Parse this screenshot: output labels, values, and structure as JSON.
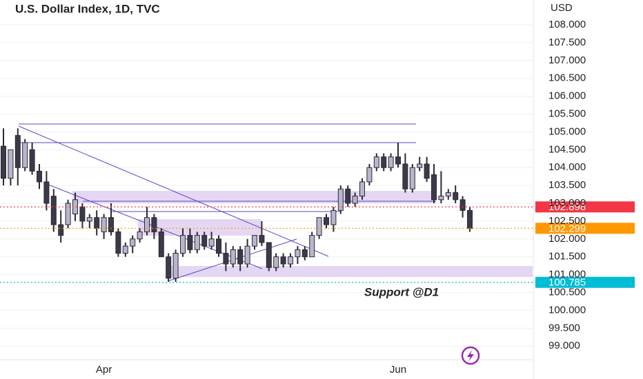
{
  "chart_data": {
    "type": "candlestick",
    "title": "U.S. Dollar Index, 1D, TVC",
    "axis_unit": "USD",
    "annotation": "Support @D1",
    "categories": [
      null,
      null,
      null,
      null,
      null,
      null,
      null,
      null,
      null,
      null,
      null,
      null,
      null,
      null,
      "Apr",
      null,
      null,
      null,
      null,
      null,
      null,
      null,
      null,
      null,
      null,
      null,
      null,
      null,
      null,
      null,
      null,
      null,
      null,
      null,
      null,
      null,
      null,
      null,
      null,
      null,
      null,
      null,
      null,
      null,
      null,
      null,
      null,
      null,
      null,
      null,
      null,
      null,
      null,
      null,
      null,
      "Jun",
      null,
      null,
      null,
      null,
      null,
      null,
      null,
      null,
      null,
      null
    ],
    "open": [
      104.6,
      103.7,
      104.9,
      104.0,
      104.5,
      103.9,
      103.6,
      103.2,
      102.4,
      102.4,
      102.7,
      102.9,
      102.5,
      102.6,
      102.2,
      102.6,
      102.2,
      101.6,
      101.8,
      102.0,
      102.2,
      102.6,
      102.2,
      101.5,
      100.9,
      101.6,
      102.1,
      101.7,
      102.1,
      101.8,
      102.0,
      101.6,
      101.3,
      101.7,
      101.3,
      101.8,
      102.1,
      101.9,
      101.2,
      101.5,
      101.3,
      101.5,
      101.7,
      101.5,
      102.1,
      102.6,
      102.4,
      102.8,
      103.4,
      103.0,
      103.2,
      103.6,
      104.0,
      104.3,
      104.0,
      104.3,
      104.1,
      103.4,
      104.0,
      104.1,
      103.8,
      103.1,
      103.2,
      103.3,
      103.1,
      102.8
    ],
    "high": [
      105.1,
      104.5,
      105.1,
      104.8,
      104.7,
      104.1,
      103.9,
      103.4,
      102.8,
      103.1,
      103.3,
      103.0,
      102.7,
      102.8,
      102.7,
      103.0,
      102.3,
      101.9,
      102.1,
      102.3,
      102.9,
      102.7,
      102.3,
      101.6,
      101.7,
      102.3,
      102.3,
      102.2,
      102.2,
      102.2,
      102.1,
      101.9,
      101.8,
      101.8,
      102.0,
      102.1,
      102.5,
      101.9,
      101.6,
      101.6,
      101.6,
      101.8,
      101.8,
      102.2,
      102.6,
      102.7,
      102.9,
      103.5,
      103.5,
      103.3,
      103.7,
      104.1,
      104.4,
      104.4,
      104.4,
      104.7,
      104.4,
      104.1,
      104.3,
      104.3,
      104.1,
      103.9,
      103.4,
      103.5,
      103.2,
      102.9
    ],
    "low": [
      103.5,
      103.5,
      103.5,
      103.9,
      103.8,
      103.4,
      102.8,
      102.2,
      101.9,
      102.3,
      102.5,
      102.3,
      102.3,
      102.1,
      102.0,
      102.1,
      101.5,
      101.5,
      101.6,
      101.9,
      102.1,
      102.0,
      101.5,
      100.8,
      100.8,
      101.5,
      101.6,
      101.6,
      101.7,
      101.7,
      101.5,
      101.1,
      101.2,
      101.1,
      101.2,
      101.7,
      101.8,
      101.1,
      101.1,
      101.2,
      101.2,
      101.3,
      101.4,
      101.5,
      102.0,
      102.3,
      102.2,
      102.7,
      102.9,
      102.9,
      103.1,
      103.5,
      103.9,
      103.9,
      103.9,
      104.0,
      103.3,
      103.3,
      103.9,
      103.6,
      103.0,
      103.0,
      103.1,
      103.0,
      102.6,
      102.2
    ],
    "close": [
      103.7,
      104.5,
      104.0,
      104.7,
      103.9,
      103.6,
      103.0,
      102.4,
      102.1,
      103.0,
      103.1,
      102.5,
      102.6,
      102.3,
      102.6,
      102.2,
      101.6,
      101.8,
      102.0,
      102.2,
      102.6,
      102.2,
      101.5,
      100.9,
      101.6,
      102.1,
      101.7,
      102.1,
      101.8,
      102.0,
      101.6,
      101.3,
      101.7,
      101.3,
      101.8,
      102.1,
      101.9,
      101.2,
      101.5,
      101.3,
      101.5,
      101.7,
      101.5,
      102.1,
      102.6,
      102.4,
      102.8,
      103.4,
      103.0,
      103.2,
      103.6,
      104.0,
      104.3,
      104.0,
      104.3,
      104.1,
      103.4,
      104.0,
      104.1,
      103.7,
      103.1,
      103.2,
      103.3,
      103.1,
      102.8,
      102.3
    ],
    "up_color": "#b9b5cc",
    "down_color": "#3b3a48",
    "price_lines": [
      {
        "value": 102.898,
        "color": "#f23645"
      },
      {
        "value": 102.299,
        "color": "#ff9800"
      },
      {
        "value": 100.785,
        "color": "#00bcd4"
      }
    ],
    "ylim": [
      98.656,
      108.695
    ],
    "yticks": [
      {
        "value": 99,
        "label": "99.000"
      },
      {
        "value": 99.5,
        "label": "99.500"
      },
      {
        "value": 100,
        "label": "100.000"
      },
      {
        "value": 100.5,
        "label": "100.500"
      },
      {
        "value": 101,
        "label": "101.000"
      },
      {
        "value": 101.5,
        "label": "101.500"
      },
      {
        "value": 102,
        "label": "102.000"
      },
      {
        "value": 102.5,
        "label": "102.500"
      },
      {
        "value": 103,
        "label": "103.000"
      },
      {
        "value": 103.5,
        "label": "103.500"
      },
      {
        "value": 104,
        "label": "104.000"
      },
      {
        "value": 104.5,
        "label": "104.500"
      },
      {
        "value": 105,
        "label": "105.000"
      },
      {
        "value": 105.5,
        "label": "105.500"
      },
      {
        "value": 106,
        "label": "106.000"
      },
      {
        "value": 106.5,
        "label": "106.500"
      },
      {
        "value": 107,
        "label": "107.000"
      },
      {
        "value": 107.5,
        "label": "107.500"
      },
      {
        "value": 108,
        "label": "108.000"
      }
    ],
    "grid": true
  }
}
